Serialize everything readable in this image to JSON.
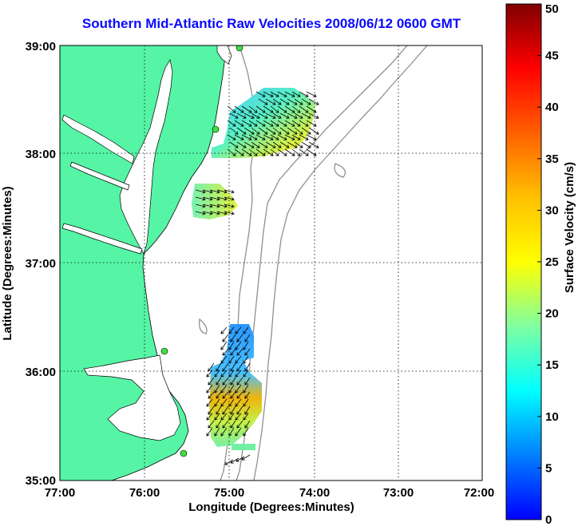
{
  "title": "Southern Mid-Atlantic Raw Velocities 2008/06/12 0600 GMT",
  "map": {
    "xlabel": "Longitude (Degrees:Minutes)",
    "ylabel": "Latitude (Degrees:Minutes)",
    "x_ticks": [
      "77:00",
      "76:00",
      "75:00",
      "74:00",
      "73:00",
      "72:00"
    ],
    "y_ticks": [
      "39:00",
      "38:00",
      "37:00",
      "36:00",
      "35:00"
    ],
    "lon_range": [
      -77,
      -72
    ],
    "lat_range": [
      35,
      39
    ],
    "land_color": "#55f5a5",
    "grid": true
  },
  "colorbar": {
    "label": "Surface Velocity (cm/s)",
    "ticks": [
      "50",
      "45",
      "40",
      "35",
      "30",
      "25",
      "20",
      "15",
      "10",
      "5",
      "0"
    ],
    "range": [
      0,
      50
    ],
    "colormap": "jet"
  }
}
